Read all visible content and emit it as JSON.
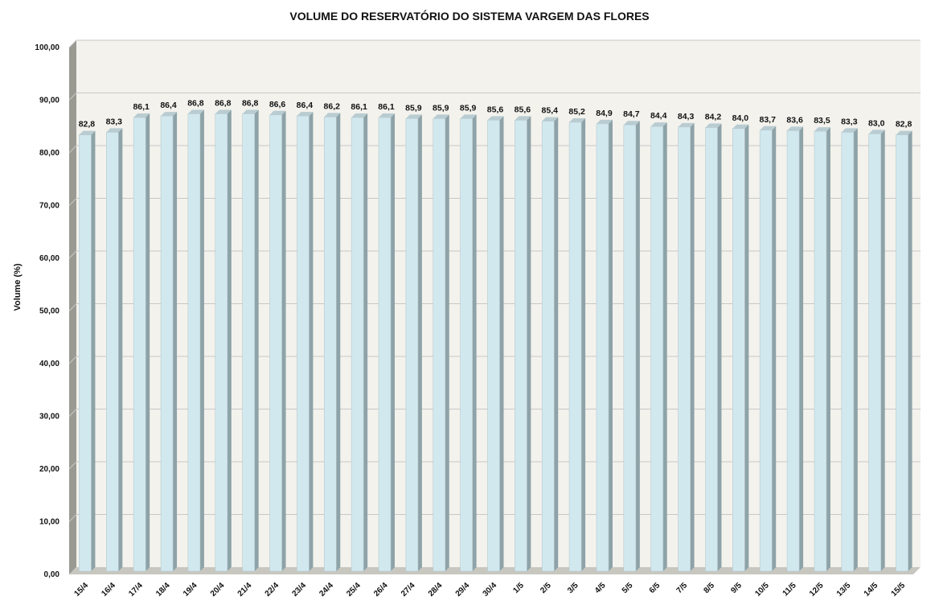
{
  "chart_data": {
    "type": "bar",
    "title": "VOLUME DO RESERVATÓRIO DO SISTEMA VARGEM DAS FLORES",
    "ylabel": "Volume (%)",
    "xlabel": "",
    "ylim": [
      0,
      100
    ],
    "yticks": [
      "0,00",
      "10,00",
      "20,00",
      "30,00",
      "40,00",
      "50,00",
      "60,00",
      "70,00",
      "80,00",
      "90,00",
      "100,00"
    ],
    "grid": true,
    "legend": "none",
    "categories": [
      "15/4",
      "16/4",
      "17/4",
      "18/4",
      "19/4",
      "20/4",
      "21/4",
      "22/4",
      "23/4",
      "24/4",
      "25/4",
      "26/4",
      "27/4",
      "28/4",
      "29/4",
      "30/4",
      "1/5",
      "2/5",
      "3/5",
      "4/5",
      "5/5",
      "6/5",
      "7/5",
      "8/5",
      "9/5",
      "10/5",
      "11/5",
      "12/5",
      "13/5",
      "14/5",
      "15/5"
    ],
    "values": [
      82.8,
      83.3,
      86.1,
      86.4,
      86.8,
      86.8,
      86.8,
      86.6,
      86.4,
      86.2,
      86.1,
      86.1,
      85.9,
      85.9,
      85.9,
      85.6,
      85.6,
      85.4,
      85.2,
      84.9,
      84.7,
      84.4,
      84.3,
      84.2,
      84.0,
      83.7,
      83.6,
      83.5,
      83.3,
      83.0,
      82.8
    ],
    "data_labels": [
      "82,8",
      "83,3",
      "86,1",
      "86,4",
      "86,8",
      "86,8",
      "86,8",
      "86,6",
      "86,4",
      "86,2",
      "86,1",
      "86,1",
      "85,9",
      "85,9",
      "85,9",
      "85,6",
      "85,6",
      "85,4",
      "85,2",
      "84,9",
      "84,7",
      "84,4",
      "84,3",
      "84,2",
      "84,0",
      "83,7",
      "83,6",
      "83,5",
      "83,3",
      "83,0",
      "82,8"
    ],
    "colors": {
      "bar_face": "#d2e8ef",
      "bar_side": "#8ea3a8",
      "bar_top": "#b9ccd1",
      "plot_bg": "#f3f2ed",
      "wall_side": "#9a9a93",
      "floor": "#c7c7c0",
      "gridline": "#c8c8c8"
    }
  }
}
